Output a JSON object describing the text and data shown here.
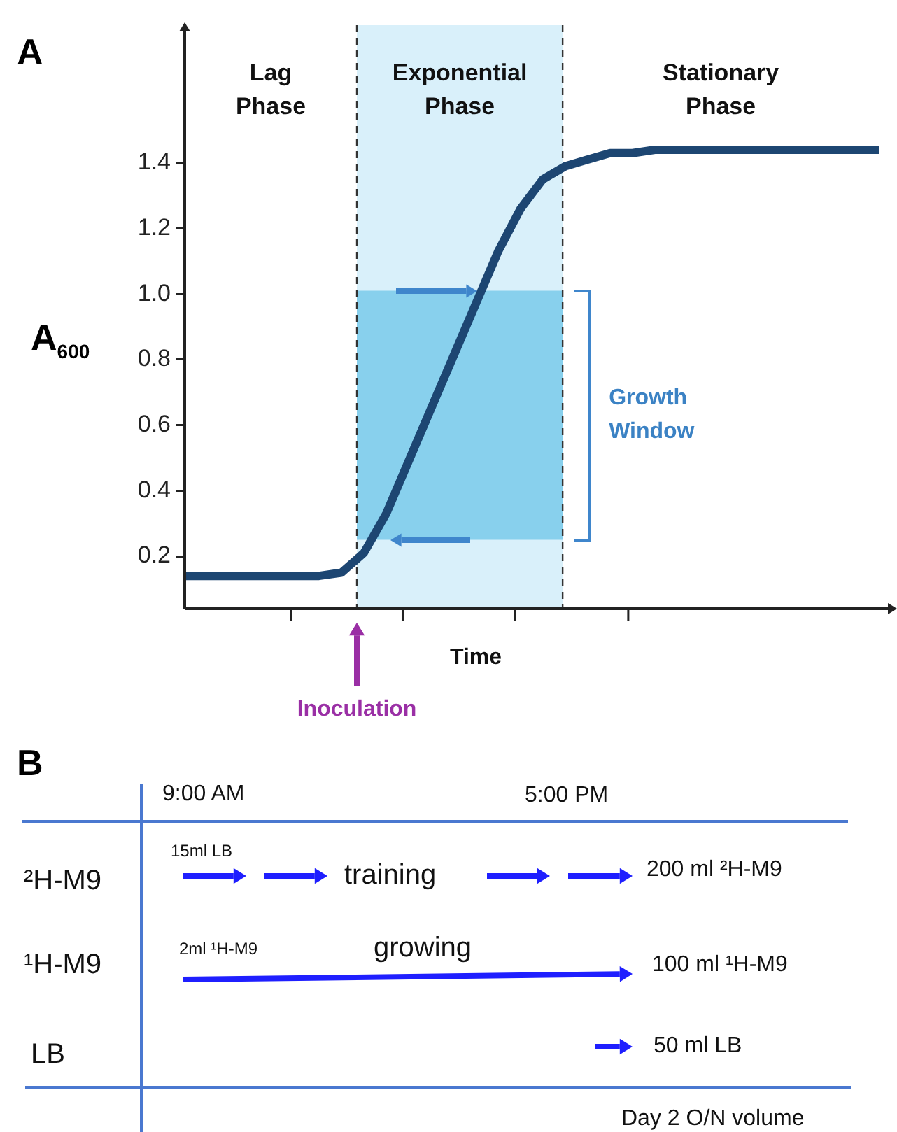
{
  "chart_data": [
    {
      "type": "line",
      "title": "A",
      "xlabel": "Time",
      "ylabel": "A$_{600}$",
      "categories": [
        null,
        null,
        null,
        null,
        null,
        null,
        null,
        null,
        null,
        null,
        null,
        null,
        null,
        null,
        null,
        null,
        null,
        null,
        null,
        null,
        null,
        null,
        null,
        null,
        null,
        null,
        null,
        null,
        null,
        null,
        null,
        null
      ],
      "series": [
        {
          "color": "#1d4672",
          "values": [
            0.14,
            0.14,
            0.14,
            0.14,
            0.14,
            0.14,
            0.14,
            0.15,
            0.21,
            0.33,
            0.49,
            0.65,
            0.81,
            0.97,
            1.13,
            1.26,
            1.35,
            1.39,
            1.41,
            1.43,
            1.43,
            1.44,
            1.44,
            1.44,
            1.44,
            1.44,
            1.44,
            1.44,
            1.44,
            1.44,
            1.44,
            1.44
          ]
        }
      ],
      "ylim": [
        0.04,
        1.82
      ],
      "yticks": [
        0.2,
        0.4,
        0.6,
        0.8,
        {
          "value": 1,
          "label": "1.0"
        },
        1.2,
        1.4
      ],
      "tick_labels": "y",
      "marker": "none",
      "line_style": "solid",
      "bands": [
        {
          "axis": "y",
          "from": 0.25,
          "to": 1.01,
          "label": "Growth Window",
          "color": "#88d0ed"
        }
      ],
      "annotations": [
        "Lag Phase",
        "Exponential Phase",
        "Stationary Phase",
        "Inoculation"
      ]
    },
    {
      "type": "other",
      "title": "B",
      "annotations": [
        "9:00 AM",
        "5:00 PM",
        "²H-M9",
        "15ml LB",
        "training",
        "200 ml ²H-M9",
        "¹H-M9",
        "2ml ¹H-M9",
        "growing",
        "100 ml ¹H-M9",
        "LB",
        "50 ml LB",
        "Day 2 O/N volume"
      ]
    }
  ]
}
